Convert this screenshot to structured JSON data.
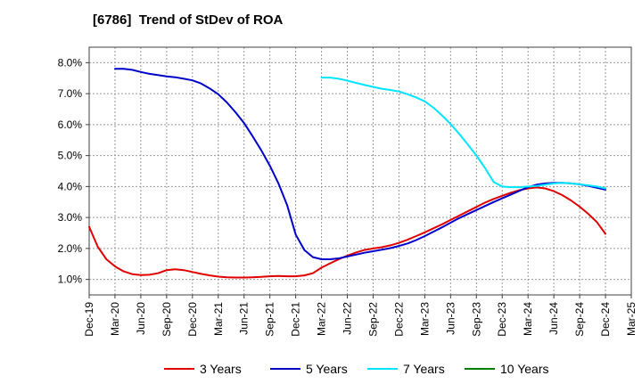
{
  "chart_data": {
    "type": "line",
    "title": "[6786]  Trend of StDev of ROA",
    "x_ticks": [
      "Dec-19",
      "Mar-20",
      "Jun-20",
      "Sep-20",
      "Dec-20",
      "Mar-21",
      "Jun-21",
      "Sep-21",
      "Dec-21",
      "Mar-22",
      "Jun-22",
      "Sep-22",
      "Dec-22",
      "Mar-23",
      "Jun-23",
      "Sep-23",
      "Dec-23",
      "Mar-24",
      "Jun-24",
      "Sep-24",
      "Dec-24",
      "Mar-25"
    ],
    "y_ticks": [
      "1.0%",
      "2.0%",
      "3.0%",
      "4.0%",
      "5.0%",
      "6.0%",
      "7.0%",
      "8.0%"
    ],
    "y_unit": "%",
    "ylim": [
      0.5,
      8.5
    ],
    "grid": true,
    "legend_position": "bottom",
    "series": [
      {
        "name": "3 Years",
        "color": "#e00000",
        "x": [
          "Dec-19",
          "Jan-20",
          "Feb-20",
          "Mar-20",
          "Apr-20",
          "May-20",
          "Jun-20",
          "Jul-20",
          "Aug-20",
          "Sep-20",
          "Oct-20",
          "Nov-20",
          "Dec-20",
          "Jan-21",
          "Feb-21",
          "Mar-21",
          "Apr-21",
          "May-21",
          "Jun-21",
          "Jul-21",
          "Aug-21",
          "Sep-21",
          "Oct-21",
          "Nov-21",
          "Dec-21",
          "Jan-22",
          "Feb-22",
          "Mar-22",
          "Apr-22",
          "May-22",
          "Jun-22",
          "Jul-22",
          "Aug-22",
          "Sep-22",
          "Oct-22",
          "Nov-22",
          "Dec-22",
          "Jan-23",
          "Feb-23",
          "Mar-23",
          "Apr-23",
          "May-23",
          "Jun-23",
          "Jul-23",
          "Aug-23",
          "Sep-23",
          "Oct-23",
          "Nov-23",
          "Dec-23",
          "Jan-24",
          "Feb-24",
          "Mar-24",
          "Apr-24",
          "May-24",
          "Jun-24",
          "Jul-24",
          "Aug-24",
          "Sep-24",
          "Oct-24",
          "Nov-24",
          "Dec-24"
        ],
        "values": [
          2.7,
          2.05,
          1.65,
          1.42,
          1.26,
          1.17,
          1.14,
          1.15,
          1.2,
          1.3,
          1.33,
          1.3,
          1.24,
          1.18,
          1.13,
          1.09,
          1.07,
          1.06,
          1.06,
          1.07,
          1.08,
          1.1,
          1.11,
          1.1,
          1.1,
          1.13,
          1.2,
          1.38,
          1.52,
          1.65,
          1.77,
          1.87,
          1.95,
          2.0,
          2.04,
          2.1,
          2.18,
          2.28,
          2.4,
          2.52,
          2.65,
          2.78,
          2.92,
          3.06,
          3.2,
          3.34,
          3.48,
          3.6,
          3.7,
          3.8,
          3.88,
          3.94,
          3.97,
          3.94,
          3.85,
          3.72,
          3.55,
          3.35,
          3.12,
          2.85,
          2.47
        ]
      },
      {
        "name": "5 Years",
        "color": "#0000cc",
        "x": [
          "Mar-20",
          "Apr-20",
          "May-20",
          "Jun-20",
          "Jul-20",
          "Aug-20",
          "Sep-20",
          "Oct-20",
          "Nov-20",
          "Dec-20",
          "Jan-21",
          "Feb-21",
          "Mar-21",
          "Apr-21",
          "May-21",
          "Jun-21",
          "Jul-21",
          "Aug-21",
          "Sep-21",
          "Oct-21",
          "Nov-21",
          "Dec-21",
          "Jan-22",
          "Feb-22",
          "Mar-22",
          "Apr-22",
          "May-22",
          "Jun-22",
          "Jul-22",
          "Aug-22",
          "Sep-22",
          "Oct-22",
          "Nov-22",
          "Dec-22",
          "Jan-23",
          "Feb-23",
          "Mar-23",
          "Apr-23",
          "May-23",
          "Jun-23",
          "Jul-23",
          "Aug-23",
          "Sep-23",
          "Oct-23",
          "Nov-23",
          "Dec-23",
          "Jan-24",
          "Feb-24",
          "Mar-24",
          "Apr-24",
          "May-24",
          "Jun-24",
          "Jul-24",
          "Aug-24",
          "Sep-24",
          "Oct-24",
          "Nov-24",
          "Dec-24"
        ],
        "values": [
          7.8,
          7.8,
          7.77,
          7.7,
          7.64,
          7.6,
          7.56,
          7.53,
          7.48,
          7.43,
          7.33,
          7.17,
          6.98,
          6.72,
          6.4,
          6.05,
          5.62,
          5.17,
          4.67,
          4.1,
          3.4,
          2.45,
          1.95,
          1.72,
          1.65,
          1.65,
          1.68,
          1.74,
          1.8,
          1.86,
          1.91,
          1.96,
          2.01,
          2.08,
          2.16,
          2.27,
          2.4,
          2.54,
          2.68,
          2.83,
          2.98,
          3.11,
          3.24,
          3.37,
          3.5,
          3.62,
          3.74,
          3.86,
          3.98,
          4.06,
          4.1,
          4.12,
          4.12,
          4.1,
          4.07,
          4.02,
          3.96,
          3.9
        ]
      },
      {
        "name": "7 Years",
        "color": "#00e5ff",
        "x": [
          "Mar-22",
          "Apr-22",
          "May-22",
          "Jun-22",
          "Jul-22",
          "Aug-22",
          "Sep-22",
          "Oct-22",
          "Nov-22",
          "Dec-22",
          "Jan-23",
          "Feb-23",
          "Mar-23",
          "Apr-23",
          "May-23",
          "Jun-23",
          "Jul-23",
          "Aug-23",
          "Sep-23",
          "Oct-23",
          "Nov-23",
          "Dec-23",
          "Jan-24",
          "Feb-24",
          "Mar-24",
          "Apr-24",
          "May-24",
          "Jun-24",
          "Jul-24",
          "Aug-24",
          "Sep-24",
          "Oct-24",
          "Nov-24",
          "Dec-24"
        ],
        "values": [
          7.52,
          7.52,
          7.48,
          7.42,
          7.35,
          7.28,
          7.22,
          7.16,
          7.12,
          7.07,
          6.98,
          6.88,
          6.75,
          6.55,
          6.3,
          6.02,
          5.7,
          5.36,
          5.0,
          4.6,
          4.15,
          4.0,
          3.98,
          3.98,
          4.0,
          4.02,
          4.06,
          4.1,
          4.12,
          4.1,
          4.07,
          4.04,
          4.0,
          3.94
        ]
      },
      {
        "name": "10 Years",
        "color": "#008000",
        "x": [],
        "values": []
      }
    ]
  }
}
